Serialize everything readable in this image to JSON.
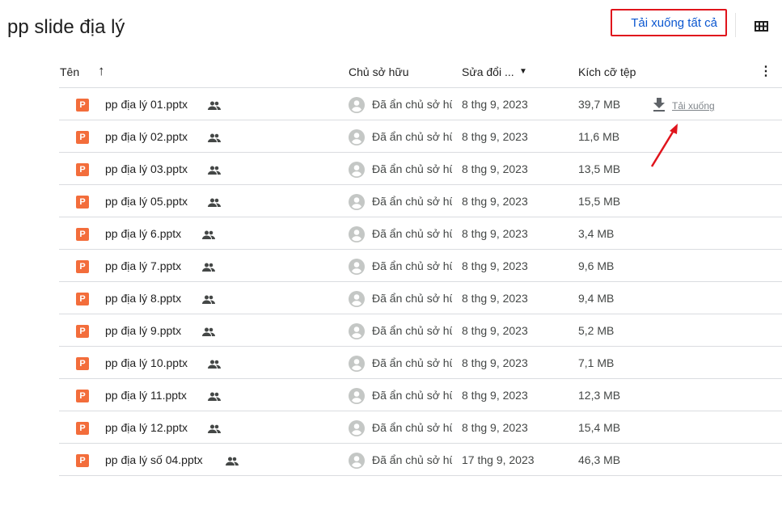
{
  "header": {
    "title": "pp slide địa lý",
    "download_all_label": "Tải xuống tất cả",
    "view_icon": "grid-view-icon"
  },
  "columns": {
    "name": "Tên",
    "sort_icon": "arrow-up-icon",
    "owner": "Chủ sở hữu",
    "modified": "Sửa đổi ...",
    "size": "Kích cỡ tệp",
    "more_icon": "more-vert-icon"
  },
  "row_action": {
    "download_label": "Tải xuống",
    "icon": "download-icon"
  },
  "accent_color": "#0b57d0",
  "files": [
    {
      "name": "pp địa lý 01.pptx",
      "owner": "Đã ẩn chủ sở hữu",
      "modified": "8 thg 9, 2023",
      "size": "39,7 MB"
    },
    {
      "name": "pp địa lý 02.pptx",
      "owner": "Đã ẩn chủ sở hữu",
      "modified": "8 thg 9, 2023",
      "size": "11,6 MB"
    },
    {
      "name": "pp địa lý 03.pptx",
      "owner": "Đã ẩn chủ sở hữu",
      "modified": "8 thg 9, 2023",
      "size": "13,5 MB"
    },
    {
      "name": "pp địa lý 05.pptx",
      "owner": "Đã ẩn chủ sở hữu",
      "modified": "8 thg 9, 2023",
      "size": "15,5 MB"
    },
    {
      "name": "pp địa lý 6.pptx",
      "owner": "Đã ẩn chủ sở hữu",
      "modified": "8 thg 9, 2023",
      "size": "3,4 MB"
    },
    {
      "name": "pp địa lý 7.pptx",
      "owner": "Đã ẩn chủ sở hữu",
      "modified": "8 thg 9, 2023",
      "size": "9,6 MB"
    },
    {
      "name": "pp địa lý 8.pptx",
      "owner": "Đã ẩn chủ sở hữu",
      "modified": "8 thg 9, 2023",
      "size": "9,4 MB"
    },
    {
      "name": "pp địa lý 9.pptx",
      "owner": "Đã ẩn chủ sở hữu",
      "modified": "8 thg 9, 2023",
      "size": "5,2 MB"
    },
    {
      "name": "pp địa lý 10.pptx",
      "owner": "Đã ẩn chủ sở hữu",
      "modified": "8 thg 9, 2023",
      "size": "7,1 MB"
    },
    {
      "name": "pp địa lý 11.pptx",
      "owner": "Đã ẩn chủ sở hữu",
      "modified": "8 thg 9, 2023",
      "size": "12,3 MB"
    },
    {
      "name": "pp địa lý 12.pptx",
      "owner": "Đã ẩn chủ sở hữu",
      "modified": "8 thg 9, 2023",
      "size": "15,4 MB"
    },
    {
      "name": "pp địa lý số 04.pptx",
      "owner": "Đã ẩn chủ sở hữu",
      "modified": "17 thg 9, 2023",
      "size": "46,3 MB"
    }
  ]
}
